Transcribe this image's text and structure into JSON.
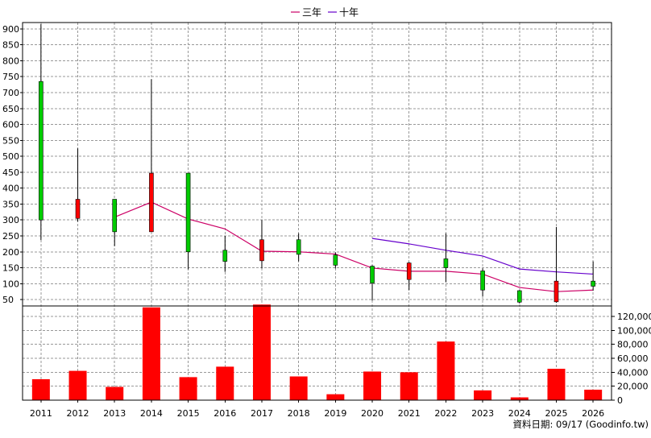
{
  "legend": {
    "ma3_label": "三年",
    "ma10_label": "十年"
  },
  "footer": {
    "source_label": "資料日期: 09/17  (Goodinfo.tw)"
  },
  "colors": {
    "background": "#ffffff",
    "grid": "#999999",
    "frame": "#000000",
    "candle_up": "#ff0000",
    "candle_down": "#00cc00",
    "candle_border": "#000000",
    "volume_bar": "#ff0000",
    "ma3_line": "#cc0066",
    "ma10_line": "#6600cc"
  },
  "chart_data": [
    {
      "type": "candlestick",
      "title": "",
      "xlabel": "",
      "ylabel": "",
      "categories": [
        "2011",
        "2012",
        "2013",
        "2014",
        "2015",
        "2016",
        "2017",
        "2018",
        "2019",
        "2020",
        "2021",
        "2022",
        "2023",
        "2024",
        "2025",
        "2026"
      ],
      "ylim": [
        30,
        920
      ],
      "y_ticks": [
        50,
        100,
        150,
        200,
        250,
        300,
        350,
        400,
        450,
        500,
        550,
        600,
        650,
        700,
        750,
        800,
        850,
        900
      ],
      "grid": true,
      "candles": [
        {
          "year": "2011",
          "open": 735,
          "high": 915,
          "low": 237,
          "close": 300,
          "direction": "down"
        },
        {
          "year": "2012",
          "open": 305,
          "high": 525,
          "low": 295,
          "close": 365,
          "direction": "up"
        },
        {
          "year": "2013",
          "open": 365,
          "high": 365,
          "low": 218,
          "close": 263,
          "direction": "down"
        },
        {
          "year": "2014",
          "open": 263,
          "high": 742,
          "low": 263,
          "close": 447,
          "direction": "up"
        },
        {
          "year": "2015",
          "open": 447,
          "high": 447,
          "low": 145,
          "close": 200,
          "direction": "down"
        },
        {
          "year": "2016",
          "open": 205,
          "high": 250,
          "low": 137,
          "close": 170,
          "direction": "down"
        },
        {
          "year": "2017",
          "open": 172,
          "high": 300,
          "low": 148,
          "close": 238,
          "direction": "up"
        },
        {
          "year": "2018",
          "open": 238,
          "high": 258,
          "low": 170,
          "close": 192,
          "direction": "down"
        },
        {
          "year": "2019",
          "open": 190,
          "high": 198,
          "low": 148,
          "close": 158,
          "direction": "down"
        },
        {
          "year": "2020",
          "open": 155,
          "high": 158,
          "low": 47,
          "close": 102,
          "direction": "down"
        },
        {
          "year": "2021",
          "open": 113,
          "high": 168,
          "low": 80,
          "close": 165,
          "direction": "up"
        },
        {
          "year": "2022",
          "open": 178,
          "high": 258,
          "low": 105,
          "close": 150,
          "direction": "down"
        },
        {
          "year": "2023",
          "open": 140,
          "high": 148,
          "low": 60,
          "close": 80,
          "direction": "down"
        },
        {
          "year": "2024",
          "open": 78,
          "high": 80,
          "low": 38,
          "close": 42,
          "direction": "down"
        },
        {
          "year": "2025",
          "open": 43,
          "high": 278,
          "low": 40,
          "close": 108,
          "direction": "up"
        },
        {
          "year": "2026",
          "open": 108,
          "high": 170,
          "low": 78,
          "close": 92,
          "direction": "down"
        }
      ],
      "series": [
        {
          "name": "三年",
          "x": [
            "2013",
            "2014",
            "2015",
            "2016",
            "2017",
            "2018",
            "2019",
            "2020",
            "2021",
            "2022",
            "2023",
            "2024",
            "2025",
            "2026"
          ],
          "values": [
            309,
            356,
            303,
            272,
            202,
            200,
            193,
            149,
            139,
            139,
            130,
            88,
            75,
            80
          ]
        },
        {
          "name": "十年",
          "x": [
            "2020",
            "2021",
            "2022",
            "2023",
            "2024",
            "2025",
            "2026"
          ],
          "values": [
            242,
            225,
            205,
            187,
            146,
            137,
            130
          ]
        }
      ]
    },
    {
      "type": "bar",
      "title": "",
      "xlabel": "",
      "ylabel": "",
      "categories": [
        "2011",
        "2012",
        "2013",
        "2014",
        "2015",
        "2016",
        "2017",
        "2018",
        "2019",
        "2020",
        "2021",
        "2022",
        "2023",
        "2024",
        "2025",
        "2026"
      ],
      "values": [
        30000,
        42000,
        19000,
        133000,
        33000,
        48000,
        137000,
        34000,
        8500,
        41000,
        40000,
        84000,
        14000,
        4000,
        45000,
        15000
      ],
      "ylim": [
        0,
        135000
      ],
      "y_ticks": [
        0,
        20000,
        40000,
        60000,
        80000,
        100000,
        120000
      ],
      "y_tick_labels": [
        "0",
        "20,000",
        "40,000",
        "60,000",
        "80,000",
        "100,000",
        "120,000"
      ],
      "grid": true
    }
  ]
}
